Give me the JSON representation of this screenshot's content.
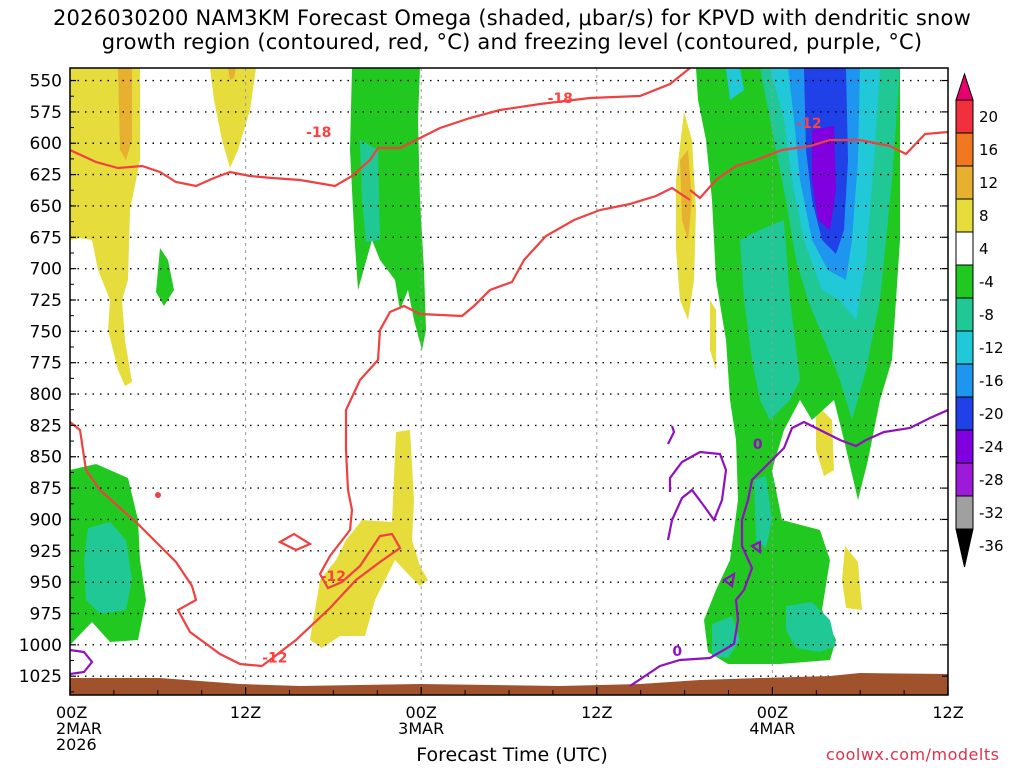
{
  "title_line1": "2026030200 NAM3KM Forecast Omega (shaded, μbar/s) for KPVD with dendritic snow",
  "title_line2": "growth region (contoured, red, °C) and freezing level (contoured, purple, °C)",
  "x_axis_title": "Forecast Time (UTC)",
  "credit": "coolwx.com/modelts",
  "x_ticks": [
    {
      "h": 0,
      "lines": [
        "00Z",
        "2MAR",
        "2026"
      ]
    },
    {
      "h": 12,
      "lines": [
        "12Z"
      ]
    },
    {
      "h": 24,
      "lines": [
        "00Z",
        "3MAR"
      ]
    },
    {
      "h": 36,
      "lines": [
        "12Z"
      ]
    },
    {
      "h": 48,
      "lines": [
        "00Z",
        "4MAR"
      ]
    },
    {
      "h": 60,
      "lines": [
        "12Z"
      ]
    }
  ],
  "y_ticks": [
    "550",
    "575",
    "600",
    "625",
    "650",
    "675",
    "700",
    "725",
    "750",
    "775",
    "800",
    "825",
    "850",
    "875",
    "900",
    "925",
    "950",
    "975",
    "1000",
    "1025"
  ],
  "colorbar": {
    "labels": [
      "20",
      "16",
      "12",
      "8",
      "4",
      "-4",
      "-8",
      "-12",
      "-16",
      "-20",
      "-24",
      "-28",
      "-32",
      "-36"
    ],
    "colors": [
      "#e8006e",
      "#f0303c",
      "#f07820",
      "#e8b030",
      "#e6dc3c",
      "#ffffff",
      "#20c820",
      "#20c896",
      "#20c8d8",
      "#1e96f0",
      "#2040e8",
      "#8000e0",
      "#9d1ad8",
      "#a0a0a0",
      "#000000"
    ]
  },
  "chart_data": {
    "type": "heatmap",
    "x_unit": "forecast hour from 00Z 2MAR 2026",
    "x_range": [
      0,
      60
    ],
    "y_unit": "pressure (mb)",
    "y_range": [
      540,
      1040
    ],
    "y_inverted": true,
    "grid": true,
    "contour_labels": [
      {
        "text": "-18",
        "h": 17,
        "p": 591,
        "color": "#ff4040"
      },
      {
        "text": "-18",
        "h": 33.5,
        "p": 564,
        "color": "#ff4040"
      },
      {
        "text": "-12",
        "h": 50.5,
        "p": 584,
        "color": "#ff4040"
      },
      {
        "text": "-12",
        "h": 18,
        "p": 945,
        "color": "#ff4040"
      },
      {
        "text": "-12",
        "h": 14,
        "p": 1010,
        "color": "#ff4040"
      },
      {
        "text": "0",
        "h": 47,
        "p": 840,
        "color": "#9010c0"
      },
      {
        "text": "0",
        "h": 41.5,
        "p": 1005,
        "color": "#9010c0"
      }
    ]
  }
}
